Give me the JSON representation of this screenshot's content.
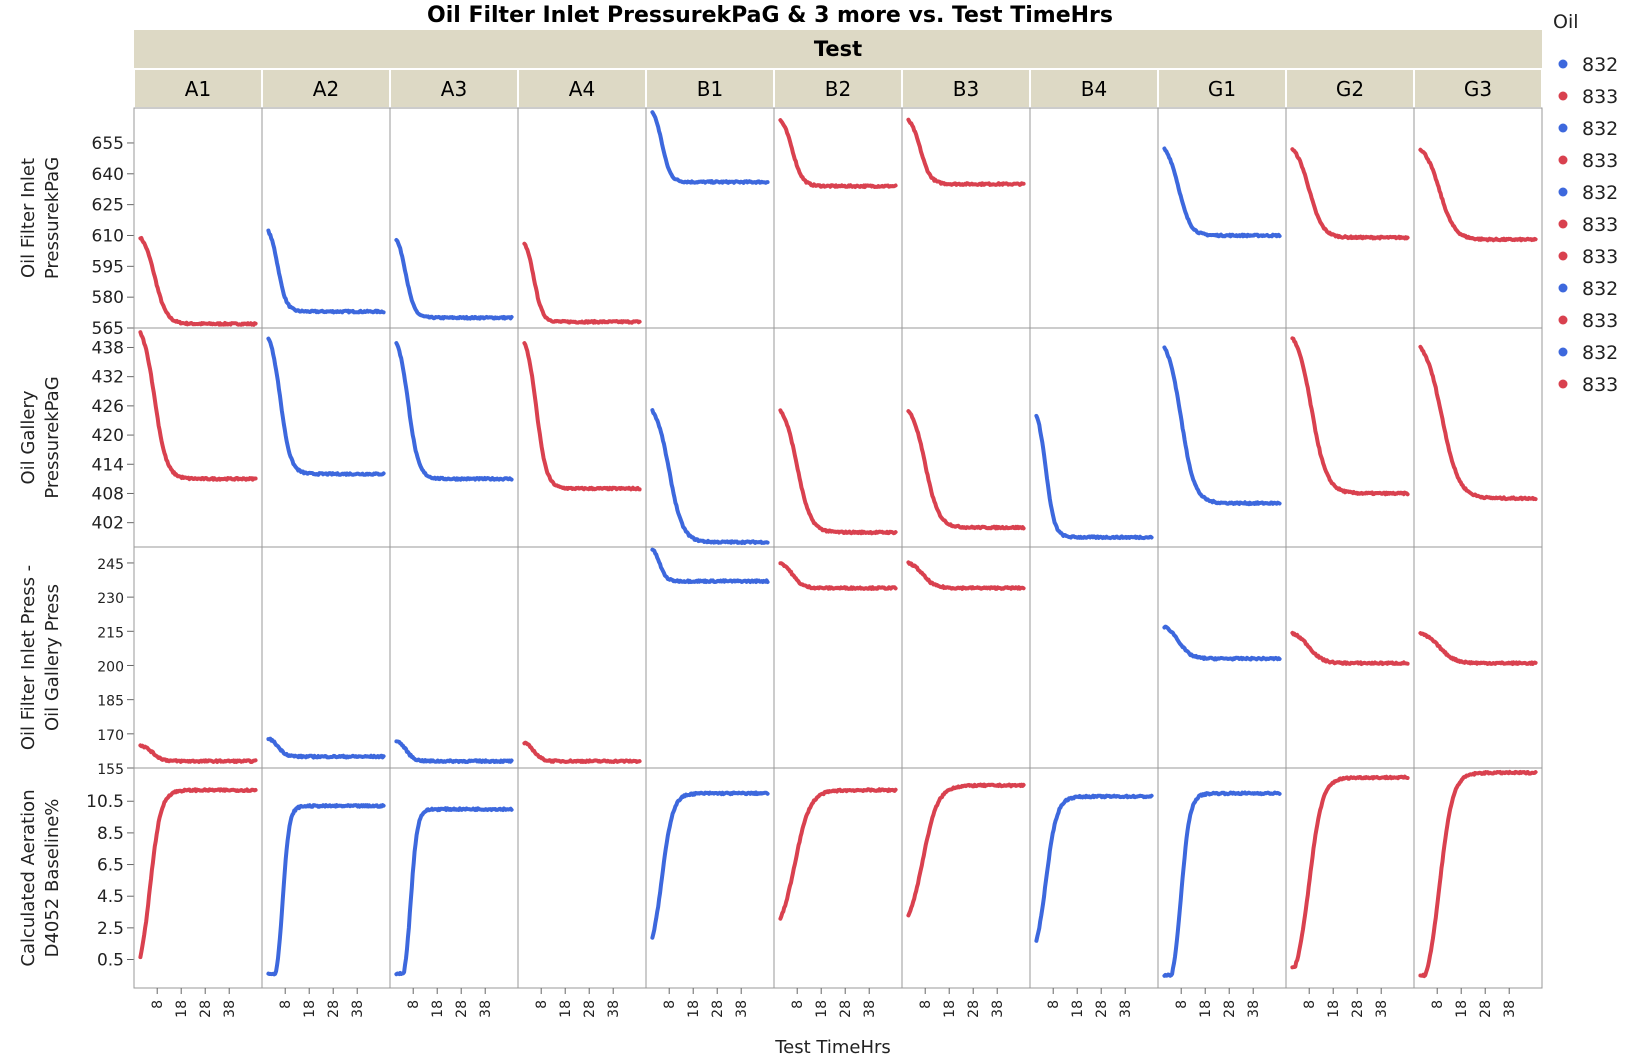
{
  "chart_data": {
    "type": "scatter",
    "title": "Oil Filter Inlet PressurekPaG & 3 more vs. Test TimeHrs",
    "column_group_label": "Test",
    "xlabel": "Test TimeHrs",
    "x_ticks": [
      8,
      18,
      28,
      38
    ],
    "x_range": [
      0,
      50
    ],
    "legend": {
      "title": "Oil",
      "position": "right",
      "entries": [
        "832",
        "833",
        "832",
        "833",
        "832",
        "833",
        "833",
        "832",
        "833",
        "832",
        "833"
      ]
    },
    "colors": {
      "832": "#3d68dd",
      "833": "#d9414f"
    },
    "strip_bg": "#ddd9c5",
    "tests": [
      {
        "name": "A1",
        "oil": "833"
      },
      {
        "name": "A2",
        "oil": "832"
      },
      {
        "name": "A3",
        "oil": "832"
      },
      {
        "name": "A4",
        "oil": "833"
      },
      {
        "name": "B1",
        "oil": "832"
      },
      {
        "name": "B2",
        "oil": "833"
      },
      {
        "name": "B3",
        "oil": "833"
      },
      {
        "name": "B4",
        "oil": "832"
      },
      {
        "name": "G1",
        "oil": "832"
      },
      {
        "name": "G2",
        "oil": "833"
      },
      {
        "name": "G3",
        "oil": "833"
      }
    ],
    "rows": [
      {
        "ylabel": [
          "Oil Filter Inlet",
          "PressurekPaG"
        ],
        "ticks": [
          565,
          580,
          595,
          610,
          625,
          640,
          655
        ],
        "ylim": [
          565,
          672
        ],
        "series": [
          {
            "test": "A1",
            "start": 609,
            "end": 567,
            "tau": 7
          },
          {
            "test": "A2",
            "start": 612,
            "end": 573,
            "tau": 5
          },
          {
            "test": "A3",
            "start": 608,
            "end": 570,
            "tau": 5
          },
          {
            "test": "A4",
            "start": 606,
            "end": 568,
            "tau": 5
          },
          {
            "test": "B1",
            "start": 670,
            "end": 636,
            "tau": 5
          },
          {
            "test": "B2",
            "start": 666,
            "end": 634,
            "tau": 6
          },
          {
            "test": "B3",
            "start": 666,
            "end": 635,
            "tau": 6
          },
          null,
          {
            "test": "G1",
            "start": 652,
            "end": 610,
            "tau": 7
          },
          {
            "test": "G2",
            "start": 652,
            "end": 609,
            "tau": 8
          },
          {
            "test": "G3",
            "start": 652,
            "end": 608,
            "tau": 9
          }
        ]
      },
      {
        "ylabel": [
          "Oil Gallery",
          "PressurekPaG"
        ],
        "ticks": [
          402,
          408,
          414,
          420,
          426,
          432,
          438
        ],
        "ylim": [
          397,
          442
        ],
        "series": [
          {
            "test": "A1",
            "start": 441,
            "end": 411,
            "tau": 7
          },
          {
            "test": "A2",
            "start": 440,
            "end": 412,
            "tau": 6
          },
          {
            "test": "A3",
            "start": 439,
            "end": 411,
            "tau": 6
          },
          {
            "test": "A4",
            "start": 439,
            "end": 409,
            "tau": 6
          },
          {
            "test": "B1",
            "start": 425,
            "end": 398,
            "tau": 8
          },
          {
            "test": "B2",
            "start": 425,
            "end": 400,
            "tau": 8
          },
          {
            "test": "B3",
            "start": 425,
            "end": 401,
            "tau": 8
          },
          {
            "test": "B4",
            "start": 424,
            "end": 399,
            "tau": 5
          },
          {
            "test": "G1",
            "start": 438,
            "end": 406,
            "tau": 8
          },
          {
            "test": "G2",
            "start": 440,
            "end": 408,
            "tau": 9
          },
          {
            "test": "G3",
            "start": 438,
            "end": 407,
            "tau": 10
          }
        ]
      },
      {
        "ylabel": [
          "Oil Filter Inlet Press -",
          "Oil Gallery Press"
        ],
        "ticks": [
          155,
          170,
          185,
          200,
          215,
          230,
          245
        ],
        "ylim": [
          155,
          252
        ],
        "series": [
          {
            "test": "A1",
            "start": 165,
            "end": 158,
            "tau": 6
          },
          {
            "test": "A2",
            "start": 168,
            "end": 160,
            "tau": 5
          },
          {
            "test": "A3",
            "start": 167,
            "end": 158,
            "tau": 5
          },
          {
            "test": "A4",
            "start": 166,
            "end": 158,
            "tau": 5
          },
          {
            "test": "B1",
            "start": 251,
            "end": 237,
            "tau": 4
          },
          {
            "test": "B2",
            "start": 245,
            "end": 234,
            "tau": 6
          },
          {
            "test": "B3",
            "start": 245,
            "end": 234,
            "tau": 7
          },
          null,
          {
            "test": "G1",
            "start": 217,
            "end": 203,
            "tau": 7
          },
          {
            "test": "G2",
            "start": 214,
            "end": 201,
            "tau": 8
          },
          {
            "test": "G3",
            "start": 214,
            "end": 201,
            "tau": 9
          }
        ]
      },
      {
        "ylabel": [
          "Calculated Aeration",
          "D4052 Baseline%"
        ],
        "ticks": [
          0.5,
          2.5,
          4.5,
          6.5,
          8.5,
          10.5
        ],
        "ylim": [
          -1.3,
          12.6
        ],
        "series": [
          {
            "test": "A1",
            "start": 0.1,
            "end": 11.2,
            "tau": 5,
            "delay": 0
          },
          {
            "test": "A2",
            "start": -0.4,
            "end": 10.2,
            "tau": 3,
            "delay": 4
          },
          {
            "test": "A3",
            "start": -0.4,
            "end": 10.0,
            "tau": 3,
            "delay": 4
          },
          null,
          {
            "test": "B1",
            "start": 1.4,
            "end": 11.0,
            "tau": 5,
            "delay": 0
          },
          {
            "test": "B2",
            "start": 2.8,
            "end": 11.2,
            "tau": 7,
            "delay": 0
          },
          {
            "test": "B3",
            "start": 3.0,
            "end": 11.5,
            "tau": 7,
            "delay": 0
          },
          {
            "test": "B4",
            "start": 1.2,
            "end": 10.8,
            "tau": 5,
            "delay": 0
          },
          {
            "test": "G1",
            "start": -0.5,
            "end": 11.0,
            "tau": 4,
            "delay": 4
          },
          {
            "test": "G2",
            "start": 0.0,
            "end": 12.0,
            "tau": 6,
            "delay": 2
          },
          {
            "test": "G3",
            "start": -0.5,
            "end": 12.3,
            "tau": 6,
            "delay": 3
          }
        ]
      }
    ]
  }
}
